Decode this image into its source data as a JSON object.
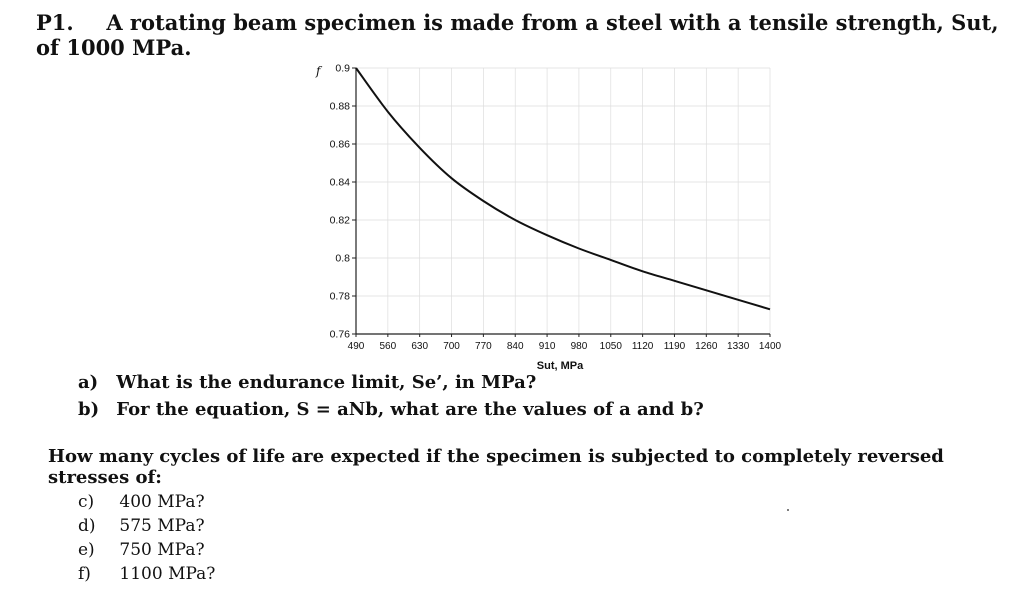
{
  "problem": {
    "number": "P1.",
    "statement": "A rotating beam specimen is made from a steel with a tensile strength, Sut, of 1000 MPa."
  },
  "parts_ab": [
    {
      "label": "a)",
      "text": "What is the endurance limit, Se’, in MPa?"
    },
    {
      "label": "b)",
      "text": "For the equation, S = aNb, what are the values of a and b?"
    }
  ],
  "question": "How many cycles of life are expected if the specimen is subjected to completely reversed stresses of:",
  "parts_cf": [
    {
      "label": "c)",
      "text": "400 MPa?"
    },
    {
      "label": "d)",
      "text": "575 MPa?"
    },
    {
      "label": "e)",
      "text": "750 MPa?"
    },
    {
      "label": "f)",
      "text": "1100 MPa?"
    }
  ],
  "chart_data": {
    "type": "line",
    "ylabel": "f",
    "xlabel": "Sut, MPa",
    "xlim": [
      490,
      1400
    ],
    "ylim": [
      0.76,
      0.9
    ],
    "x_ticks": [
      490,
      560,
      630,
      700,
      770,
      840,
      910,
      980,
      1050,
      1120,
      1190,
      1260,
      1330,
      1400
    ],
    "y_ticks": [
      0.76,
      0.78,
      0.8,
      0.82,
      0.84,
      0.86,
      0.88,
      0.9
    ],
    "grid": true,
    "series": [
      {
        "x": [
          490,
          560,
          630,
          700,
          770,
          840,
          910,
          980,
          1050,
          1120,
          1190,
          1260,
          1330,
          1400
        ],
        "y": [
          0.9,
          0.877,
          0.858,
          0.842,
          0.83,
          0.82,
          0.812,
          0.805,
          0.799,
          0.793,
          0.788,
          0.783,
          0.778,
          0.773
        ]
      }
    ]
  }
}
